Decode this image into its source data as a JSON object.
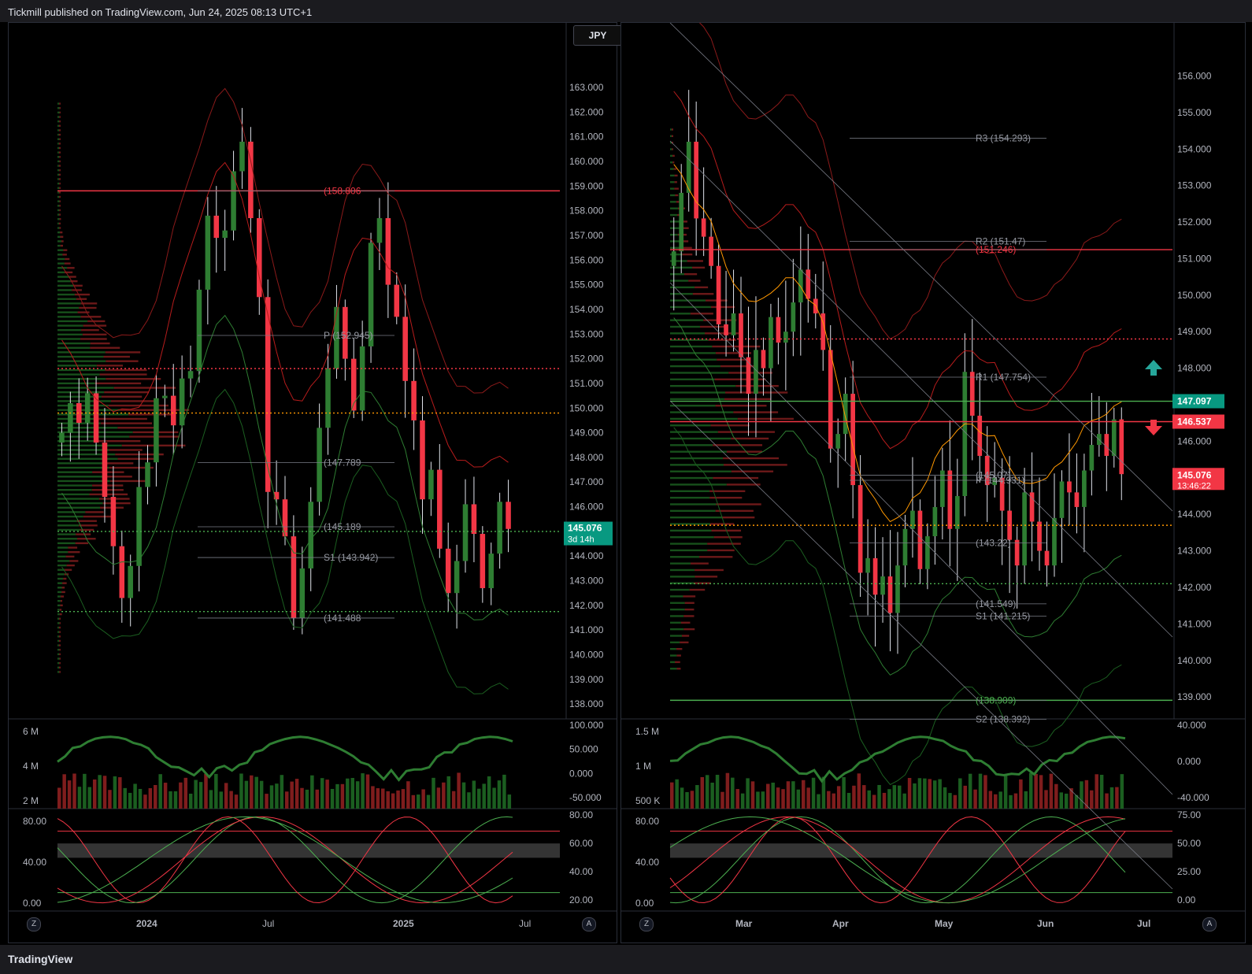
{
  "header": {
    "published": "Tickmill published on TradingView.com, Jun 24, 2025 08:13 UTC+1"
  },
  "footer": {
    "brand": "TradingView"
  },
  "symbol_label": "JPY",
  "colors": {
    "up": "#2e7d32",
    "down": "#f23645",
    "bg": "#000000",
    "axis_text": "#b2b5be",
    "orange": "#ff9800",
    "green_line": "#4caf50"
  },
  "buttons": {
    "z": "Z",
    "a": "A"
  },
  "chart_data": [
    {
      "type": "line",
      "panel": "left-price",
      "y_axis_ticks": [
        "163.000",
        "162.000",
        "161.000",
        "160.000",
        "159.000",
        "158.000",
        "157.000",
        "156.000",
        "155.000",
        "154.000",
        "153.000",
        "152.000",
        "151.000",
        "150.000",
        "149.000",
        "148.000",
        "147.000",
        "146.000",
        "145.000",
        "144.000",
        "143.000",
        "142.000",
        "141.000",
        "140.000",
        "139.000",
        "138.000"
      ],
      "y_axis_values": [
        163,
        162,
        161,
        160,
        159,
        158,
        157,
        156,
        155,
        154,
        153,
        152,
        151,
        150,
        149,
        148,
        147,
        146,
        145,
        144,
        143,
        142,
        141,
        140,
        139,
        138
      ],
      "ylim": [
        137.4,
        164.5
      ],
      "x_labels": [
        "2024",
        "Jul",
        "2025",
        "Jul"
      ],
      "close_path": [
        149,
        150.2,
        149.4,
        150.6,
        148.6,
        146.4,
        144.4,
        142.3,
        143.6,
        146.8,
        147.8,
        150.4,
        150.5,
        149.3,
        151.2,
        151.5,
        154.8,
        157.8,
        156.9,
        157.2,
        159.6,
        160.8,
        157.7,
        154.5,
        146.6,
        146.3,
        144.8,
        141.5,
        143.5,
        146.2,
        149.2,
        151.6,
        154.1,
        152.0,
        149.9,
        152.5,
        156.7,
        157.7,
        155.0,
        153.7,
        151.1,
        149.5,
        146.3,
        147.5,
        144.3,
        142.5,
        143.8,
        146.1,
        144.9,
        142.7,
        144.1,
        146.2,
        145.1
      ],
      "labels": [
        {
          "text": "(158.806",
          "value": 158.806,
          "color": "#f23645"
        },
        {
          "text": "P (152.945)",
          "value": 152.945,
          "color": "#9598a1"
        },
        {
          "text": "(147.789",
          "value": 147.789,
          "color": "#9598a1"
        },
        {
          "text": "(145.189",
          "value": 145.189,
          "color": "#9598a1"
        },
        {
          "text": "S1 (143.942)",
          "value": 143.942,
          "color": "#9598a1"
        },
        {
          "text": "(141.488",
          "value": 141.488,
          "color": "#9598a1"
        }
      ],
      "hlines": [
        {
          "value": 158.806,
          "color": "#f23645",
          "style": "solid"
        },
        {
          "value": 151.6,
          "color": "#f23645",
          "style": "dotted"
        },
        {
          "value": 149.8,
          "color": "#ff9800",
          "style": "dotted"
        },
        {
          "value": 141.75,
          "color": "#4caf50",
          "style": "dotted"
        },
        {
          "value": 145.0,
          "color": "#4caf50",
          "style": "dotted"
        }
      ],
      "last_price": {
        "text": "145.076",
        "sub": "3d 14h",
        "value": 145.076,
        "color": "#089981"
      }
    },
    {
      "type": "line",
      "panel": "right-price",
      "y_axis_ticks": [
        "156.000",
        "155.000",
        "154.000",
        "153.000",
        "152.000",
        "151.000",
        "150.000",
        "149.000",
        "148.000",
        "147.000",
        "146.000",
        "145.000",
        "144.000",
        "143.000",
        "142.000",
        "141.000",
        "140.000",
        "139.000"
      ],
      "y_axis_values": [
        156,
        155,
        154,
        153,
        152,
        151,
        150,
        149,
        148,
        147,
        146,
        145,
        144,
        143,
        142,
        141,
        140,
        139
      ],
      "ylim": [
        138.4,
        156.7
      ],
      "x_labels": [
        "Mar",
        "Apr",
        "May",
        "Jun",
        "Jul"
      ],
      "close_path": [
        151.2,
        152.8,
        154.2,
        152.1,
        151.6,
        150.8,
        149.2,
        148.9,
        149.5,
        148.3,
        147.3,
        148.5,
        148.0,
        149.4,
        148.7,
        149.0,
        149.8,
        150.7,
        149.9,
        149.5,
        148.5,
        145.8,
        146.2,
        147.3,
        144.8,
        142.4,
        142.8,
        141.8,
        142.3,
        141.3,
        142.6,
        143.6,
        144.1,
        142.5,
        143.4,
        144.2,
        145.2,
        143.6,
        144.5,
        147.9,
        146.7,
        145.6,
        144.8,
        145.0,
        144.1,
        143.3,
        142.6,
        144.6,
        143.8,
        143.0,
        142.6,
        143.9,
        144.9,
        144.6,
        144.2,
        145.2,
        145.9,
        146.2,
        145.6,
        146.6,
        145.1
      ],
      "labels": [
        {
          "text": "R3 (154.293)",
          "value": 154.293,
          "color": "#9598a1"
        },
        {
          "text": "R2 (151.47)",
          "value": 151.47,
          "color": "#9598a1"
        },
        {
          "text": "(151.246)",
          "value": 151.246,
          "color": "#f23645"
        },
        {
          "text": "R1 (147.754)",
          "value": 147.754,
          "color": "#9598a1"
        },
        {
          "text": "P (144.931)",
          "value": 144.931,
          "color": "#9598a1"
        },
        {
          "text": "(145.07)",
          "value": 145.07,
          "color": "#9598a1"
        },
        {
          "text": "(143.22)",
          "value": 143.22,
          "color": "#9598a1"
        },
        {
          "text": "(141.549)",
          "value": 141.549,
          "color": "#9598a1"
        },
        {
          "text": "S1 (141.215)",
          "value": 141.215,
          "color": "#9598a1"
        },
        {
          "text": "(138.909)",
          "value": 138.909,
          "color": "#4caf50"
        },
        {
          "text": "S2 (138.392)",
          "value": 138.392,
          "color": "#9598a1"
        }
      ],
      "hlines": [
        {
          "value": 151.246,
          "color": "#f23645",
          "style": "solid"
        },
        {
          "value": 148.8,
          "color": "#f23645",
          "style": "dotted"
        },
        {
          "value": 147.097,
          "color": "#4caf50",
          "style": "solid"
        },
        {
          "value": 146.537,
          "color": "#f23645",
          "style": "solid"
        },
        {
          "value": 143.7,
          "color": "#ff9800",
          "style": "dotted"
        },
        {
          "value": 142.1,
          "color": "#4caf50",
          "style": "dotted"
        },
        {
          "value": 138.909,
          "color": "#4caf50",
          "style": "solid"
        }
      ],
      "price_tags": [
        {
          "text": "147.097",
          "value": 147.097,
          "color": "#089981"
        },
        {
          "text": "146.537",
          "value": 146.537,
          "color": "#f23645"
        },
        {
          "text": "145.076",
          "sub": "13:46:22",
          "value": 145.076,
          "color": "#f23645"
        }
      ]
    },
    {
      "type": "bar",
      "panel": "left-volume",
      "y_left_ticks": [
        "6 M",
        "4 M",
        "2 M"
      ],
      "y_right_ticks": [
        "100.000",
        "50.000",
        "0.000",
        "-50.000"
      ]
    },
    {
      "type": "bar",
      "panel": "right-volume",
      "y_left_ticks": [
        "1.5 M",
        "1 M",
        "500 K"
      ],
      "y_right_ticks": [
        "40.000",
        "0.000",
        "-40.000"
      ]
    },
    {
      "type": "line",
      "panel": "left-oscillator",
      "y_left_ticks": [
        "80.00",
        "40.00",
        "0.00"
      ],
      "y_right_ticks": [
        "80.00",
        "60.00",
        "40.00",
        "20.00"
      ]
    },
    {
      "type": "line",
      "panel": "right-oscillator",
      "y_left_ticks": [
        "80.00",
        "40.00",
        "0.00"
      ],
      "y_right_ticks": [
        "75.00",
        "50.00",
        "25.00",
        "0.00"
      ]
    }
  ]
}
